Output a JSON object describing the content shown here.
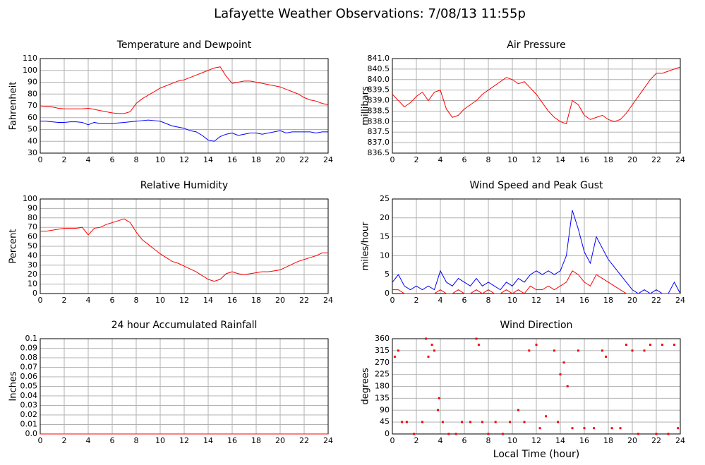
{
  "title": "Lafayette Weather Observations: 7/08/13 11:55p",
  "chart_data": [
    {
      "type": "line",
      "title": "Temperature and Dewpoint",
      "ylabel": "Fahrenheit",
      "grid": true,
      "x": [
        0,
        0.5,
        1,
        1.5,
        2,
        2.5,
        3,
        3.5,
        4,
        4.5,
        5,
        5.5,
        6,
        6.5,
        7,
        7.5,
        8,
        8.5,
        9,
        9.5,
        10,
        10.5,
        11,
        11.5,
        12,
        12.5,
        13,
        13.5,
        14,
        14.5,
        15,
        15.5,
        16,
        16.5,
        17,
        17.5,
        18,
        18.5,
        19,
        19.5,
        20,
        20.5,
        21,
        21.5,
        22,
        22.5,
        23,
        23.5,
        24
      ],
      "series": [
        {
          "color": "#ff0000",
          "values": [
            70,
            69.5,
            69,
            68,
            67.5,
            67.5,
            67.5,
            67.5,
            68,
            67,
            66,
            65,
            64,
            63.5,
            63.5,
            65,
            72,
            76,
            79,
            82,
            85,
            87,
            89,
            91,
            92,
            94,
            96,
            98,
            100,
            102,
            103,
            95,
            89,
            90,
            91,
            91,
            90,
            89,
            88,
            87,
            86,
            84,
            82,
            80,
            77,
            75,
            74,
            72,
            71
          ]
        },
        {
          "color": "#0000ff",
          "values": [
            57,
            57,
            56.5,
            56,
            56,
            56.5,
            56.5,
            56,
            54,
            56,
            55,
            55,
            55,
            55.5,
            56,
            56.5,
            57,
            57.5,
            58,
            57.5,
            57,
            55,
            53,
            52,
            51,
            49,
            48,
            45,
            41,
            40,
            44,
            46,
            47,
            45,
            46,
            47,
            47,
            46,
            47,
            48,
            49,
            47,
            48,
            48,
            48,
            48,
            47,
            48,
            48
          ]
        }
      ],
      "xlim": [
        0,
        24
      ],
      "xticks": [
        0,
        2,
        4,
        6,
        8,
        10,
        12,
        14,
        16,
        18,
        20,
        22,
        24
      ],
      "ylim": [
        30,
        110
      ],
      "yticks": [
        30,
        40,
        50,
        60,
        70,
        80,
        90,
        100,
        110
      ]
    },
    {
      "type": "line",
      "title": "Air Pressure",
      "ylabel": "millibars",
      "grid": true,
      "x": [
        0,
        0.5,
        1,
        1.5,
        2,
        2.5,
        3,
        3.5,
        4,
        4.5,
        5,
        5.5,
        6,
        6.5,
        7,
        7.5,
        8,
        8.5,
        9,
        9.5,
        10,
        10.5,
        11,
        11.5,
        12,
        12.5,
        13,
        13.5,
        14,
        14.5,
        15,
        15.5,
        16,
        16.5,
        17,
        17.5,
        18,
        18.5,
        19,
        19.5,
        20,
        20.5,
        21,
        21.5,
        22,
        22.5,
        23,
        23.5,
        24
      ],
      "series": [
        {
          "color": "#ff0000",
          "values": [
            839.3,
            839.0,
            838.7,
            838.9,
            839.2,
            839.4,
            839.0,
            839.4,
            839.5,
            838.6,
            838.2,
            838.3,
            838.6,
            838.8,
            839.0,
            839.3,
            839.5,
            839.7,
            839.9,
            840.1,
            840.0,
            839.8,
            839.9,
            839.6,
            839.3,
            838.9,
            838.5,
            838.2,
            838.0,
            837.9,
            839.0,
            838.8,
            838.3,
            838.1,
            838.2,
            838.3,
            838.1,
            838.0,
            838.1,
            838.4,
            838.8,
            839.2,
            839.6,
            840.0,
            840.3,
            840.3,
            840.4,
            840.5,
            840.6
          ]
        }
      ],
      "xlim": [
        0,
        24
      ],
      "xticks": [
        0,
        2,
        4,
        6,
        8,
        10,
        12,
        14,
        16,
        18,
        20,
        22,
        24
      ],
      "ylim": [
        836.5,
        841
      ],
      "yticks": [
        836.5,
        {
          "value": 837,
          "label": "837.0"
        },
        837.5,
        {
          "value": 838,
          "label": "838.0"
        },
        838.5,
        {
          "value": 839,
          "label": "839.0"
        },
        839.5,
        {
          "value": 840,
          "label": "840.0"
        },
        840.5,
        {
          "value": 841,
          "label": "841.0"
        }
      ]
    },
    {
      "type": "line",
      "title": "Relative Humidity",
      "ylabel": "Percent",
      "grid": true,
      "x": [
        0,
        0.5,
        1,
        1.5,
        2,
        2.5,
        3,
        3.5,
        4,
        4.5,
        5,
        5.5,
        6,
        6.5,
        7,
        7.5,
        8,
        8.5,
        9,
        9.5,
        10,
        10.5,
        11,
        11.5,
        12,
        12.5,
        13,
        13.5,
        14,
        14.5,
        15,
        15.5,
        16,
        16.5,
        17,
        17.5,
        18,
        18.5,
        19,
        19.5,
        20,
        20.5,
        21,
        21.5,
        22,
        22.5,
        23,
        23.5,
        24
      ],
      "series": [
        {
          "color": "#ff0000",
          "values": [
            66,
            66,
            67,
            68,
            69,
            69,
            69,
            70,
            62,
            69,
            70,
            73,
            75,
            77,
            79,
            75,
            65,
            57,
            52,
            47,
            42,
            38,
            34,
            32,
            29,
            26,
            23,
            19,
            15,
            13,
            15,
            21,
            23,
            21,
            20,
            21,
            22,
            23,
            23,
            24,
            25,
            28,
            31,
            34,
            36,
            38,
            40,
            43,
            43
          ]
        }
      ],
      "xlim": [
        0,
        24
      ],
      "xticks": [
        0,
        2,
        4,
        6,
        8,
        10,
        12,
        14,
        16,
        18,
        20,
        22,
        24
      ],
      "ylim": [
        0,
        100
      ],
      "yticks": [
        0,
        10,
        20,
        30,
        40,
        50,
        60,
        70,
        80,
        90,
        100
      ]
    },
    {
      "type": "line",
      "title": "Wind Speed and Peak Gust",
      "ylabel": "miles/hour",
      "grid": true,
      "x": [
        0,
        0.5,
        1,
        1.5,
        2,
        2.5,
        3,
        3.5,
        4,
        4.5,
        5,
        5.5,
        6,
        6.5,
        7,
        7.5,
        8,
        8.5,
        9,
        9.5,
        10,
        10.5,
        11,
        11.5,
        12,
        12.5,
        13,
        13.5,
        14,
        14.5,
        15,
        15.5,
        16,
        16.5,
        17,
        17.5,
        18,
        18.5,
        19,
        19.5,
        20,
        20.5,
        21,
        21.5,
        22,
        22.5,
        23,
        23.5,
        24
      ],
      "series": [
        {
          "color": "#0000ff",
          "values": [
            3,
            5,
            2,
            1,
            2,
            1,
            2,
            1,
            6,
            3,
            2,
            4,
            3,
            2,
            4,
            2,
            3,
            2,
            1,
            3,
            2,
            4,
            3,
            5,
            6,
            5,
            6,
            5,
            6,
            10,
            22,
            17,
            11,
            8,
            15,
            12,
            9,
            7,
            5,
            3,
            1,
            0,
            1,
            0,
            1,
            0,
            0,
            3,
            0
          ]
        },
        {
          "color": "#ff0000",
          "values": [
            1,
            1,
            0,
            0,
            0,
            0,
            0,
            0,
            1,
            0,
            0,
            1,
            0,
            0,
            1,
            0,
            1,
            0,
            0,
            1,
            0,
            1,
            0,
            2,
            1,
            1,
            2,
            1,
            2,
            3,
            6,
            5,
            3,
            2,
            5,
            4,
            3,
            2,
            1,
            0,
            0,
            0,
            0,
            0,
            0,
            0,
            0,
            0,
            0
          ]
        }
      ],
      "xlim": [
        0,
        24
      ],
      "xticks": [
        0,
        2,
        4,
        6,
        8,
        10,
        12,
        14,
        16,
        18,
        20,
        22,
        24
      ],
      "ylim": [
        0,
        25
      ],
      "yticks": [
        0,
        5,
        10,
        15,
        20,
        25
      ]
    },
    {
      "type": "line",
      "title": "24 hour Accumulated Rainfall",
      "ylabel": "Inches",
      "grid": true,
      "x": [
        0,
        24
      ],
      "series": [
        {
          "color": "#ff0000",
          "values": [
            0,
            0
          ]
        }
      ],
      "xlim": [
        0,
        24
      ],
      "xticks": [
        0,
        2,
        4,
        6,
        8,
        10,
        12,
        14,
        16,
        18,
        20,
        22,
        24
      ],
      "ylim": [
        0,
        0.1
      ],
      "yticks": [
        {
          "value": 0,
          "label": "0.0"
        },
        0.01,
        0.02,
        0.03,
        0.04,
        0.05,
        0.06,
        0.07,
        0.08,
        0.09,
        0.1
      ]
    },
    {
      "type": "scatter",
      "title": "Wind Direction",
      "ylabel": "degrees",
      "xlabel": "Local Time (hour)",
      "grid": true,
      "color": "#ff0000",
      "x": [
        0.2,
        0.5,
        0.8,
        1.2,
        1.8,
        2.5,
        2.8,
        3.0,
        3.3,
        3.5,
        3.8,
        3.9,
        4.2,
        4.7,
        5.3,
        5.8,
        6.5,
        7.0,
        7.2,
        7.5,
        8.0,
        8.6,
        9.2,
        9.8,
        10.5,
        11.0,
        11.4,
        12.0,
        12.3,
        12.8,
        13.5,
        13.8,
        14.0,
        14.3,
        14.6,
        15.0,
        15.5,
        16.0,
        16.8,
        17.5,
        17.8,
        18.3,
        19.0,
        19.5,
        20.0,
        20.5,
        21.0,
        21.5,
        22.0,
        22.5,
        23.0,
        23.5,
        23.8
      ],
      "values": [
        292,
        315,
        45,
        45,
        0,
        45,
        360,
        292,
        337,
        315,
        90,
        135,
        45,
        0,
        0,
        45,
        45,
        360,
        337,
        45,
        0,
        45,
        0,
        45,
        90,
        45,
        315,
        337,
        22,
        67,
        315,
        45,
        225,
        270,
        180,
        22,
        315,
        22,
        22,
        315,
        292,
        22,
        22,
        337,
        315,
        0,
        315,
        337,
        0,
        337,
        0,
        337,
        22
      ],
      "xlim": [
        0,
        24
      ],
      "xticks": [
        0,
        2,
        4,
        6,
        8,
        10,
        12,
        14,
        16,
        18,
        20,
        22,
        24
      ],
      "ylim": [
        0,
        360
      ],
      "yticks": [
        0,
        45,
        90,
        135,
        180,
        225,
        270,
        315,
        360
      ]
    }
  ]
}
